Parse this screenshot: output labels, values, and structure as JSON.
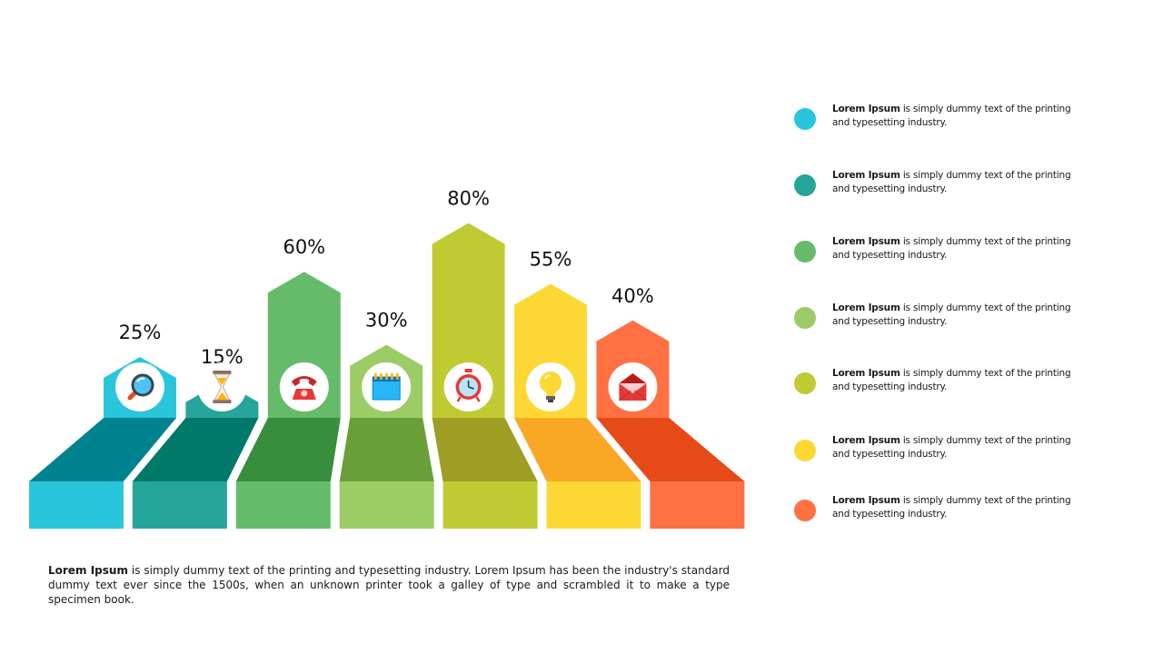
{
  "chart_data": {
    "type": "bar",
    "categories": [
      "",
      "",
      "",
      "",
      "",
      "",
      ""
    ],
    "values": [
      25,
      15,
      60,
      30,
      80,
      55,
      40
    ],
    "value_labels": [
      "25%",
      "15%",
      "60%",
      "30%",
      "80%",
      "55%",
      "40%"
    ],
    "ylim": [
      0,
      100
    ],
    "grid": false,
    "title": "",
    "xlabel": "",
    "ylabel": "",
    "colors": {
      "front": [
        "#29C6DB",
        "#26A69A",
        "#66BB6A",
        "#9CCC65",
        "#C0CA33",
        "#FDD835",
        "#FF7043"
      ],
      "top": [
        "#00838F",
        "#00796B",
        "#388E3C",
        "#689F38",
        "#9E9D24",
        "#F9A825",
        "#E64A19"
      ]
    },
    "icons": [
      "magnifier-icon",
      "hourglass-icon",
      "telephone-icon",
      "calendar-icon",
      "alarm-clock-icon",
      "lightbulb-icon",
      "envelope-icon"
    ]
  },
  "legend": {
    "items": [
      {
        "bold": "Lorem Ipsum",
        "text": " is simply dummy text of the printing and typesetting industry.",
        "color": "#29C6DB"
      },
      {
        "bold": "Lorem Ipsum",
        "text": " is simply dummy text of the printing and typesetting industry.",
        "color": "#26A69A"
      },
      {
        "bold": "Lorem Ipsum",
        "text": " is simply dummy text of the printing and typesetting industry.",
        "color": "#66BB6A"
      },
      {
        "bold": "Lorem Ipsum",
        "text": " is simply dummy text of the printing and typesetting industry.",
        "color": "#9CCC65"
      },
      {
        "bold": "Lorem Ipsum",
        "text": " is simply dummy text of the printing and typesetting industry.",
        "color": "#C0CA33"
      },
      {
        "bold": "Lorem Ipsum",
        "text": " is simply dummy text of the printing and typesetting industry.",
        "color": "#FDD835"
      },
      {
        "bold": "Lorem Ipsum",
        "text": " is simply dummy text of the printing and typesetting industry.",
        "color": "#FF7043"
      }
    ]
  },
  "footer": {
    "bold": "Lorem Ipsum",
    "text": " is simply dummy text of the printing and typesetting industry. Lorem Ipsum has been the industry's standard dummy text ever since the 1500s, when an unknown printer took a galley of type and scrambled it to make a type specimen book."
  }
}
